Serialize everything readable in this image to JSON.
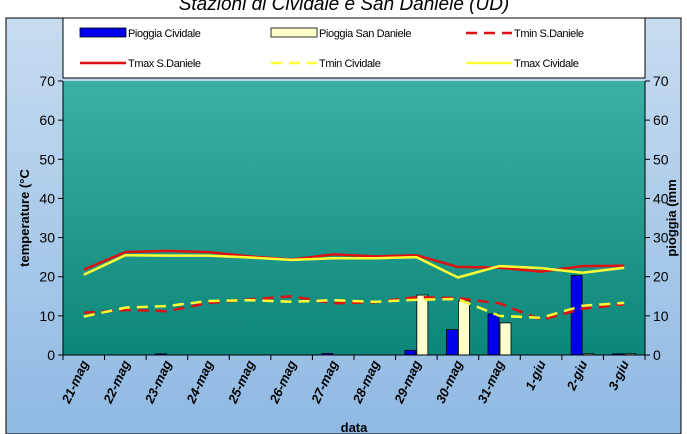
{
  "chart_data": {
    "type": "bar",
    "title": "Stazioni di Cividale e San Daniele (UD)",
    "xlabel": "data",
    "ylabel_left": "temperature (°C",
    "ylabel_right": "pioggia (mm",
    "categories": [
      "21-mag",
      "22-mag",
      "23-mag",
      "24-mag",
      "25-mag",
      "26-mag",
      "27-mag",
      "28-mag",
      "29-mag",
      "30-mag",
      "31-mag",
      "1-giu",
      "2-giu",
      "3-giu"
    ],
    "ylim_left": [
      0,
      70
    ],
    "ylim_right": [
      0,
      70
    ],
    "yticks": [
      0,
      10,
      20,
      30,
      40,
      50,
      60,
      70
    ],
    "grid": false,
    "legend_position": "top",
    "bar_series": [
      {
        "name": "Pioggia Cividale",
        "color": "#0000ee",
        "axis": "right",
        "values": [
          0,
          0,
          0.3,
          0,
          0,
          0,
          0.4,
          0,
          1.2,
          6.5,
          10.5,
          0,
          20.3,
          0.3
        ]
      },
      {
        "name": "Pioggia San Daniele",
        "color": "#ffffcc",
        "axis": "right",
        "values": [
          0,
          0,
          0,
          0,
          0,
          0,
          0,
          0,
          15.3,
          13.8,
          8.2,
          0,
          0.3,
          0.3
        ]
      }
    ],
    "line_series": [
      {
        "name": "Tmin S.Daniele",
        "color": "#dd1111",
        "style": "dashed",
        "axis": "left",
        "values": [
          10.8,
          11.5,
          11.2,
          13.3,
          14.2,
          15.0,
          13.2,
          13.5,
          14.8,
          14.5,
          13.2,
          9.0,
          11.8,
          13.0
        ]
      },
      {
        "name": "Tmax S.Daniele",
        "color": "#dd1111",
        "style": "solid",
        "axis": "left",
        "values": [
          21.8,
          26.3,
          26.6,
          26.3,
          25.2,
          24.4,
          25.7,
          25.2,
          25.5,
          22.5,
          22.3,
          21.3,
          22.7,
          22.8
        ]
      },
      {
        "name": "Tmin Cividale",
        "color": "#ffff33",
        "style": "dashed",
        "axis": "left",
        "values": [
          9.8,
          12.1,
          12.5,
          13.8,
          14.0,
          13.6,
          14.0,
          13.6,
          14.1,
          14.3,
          10.0,
          9.5,
          12.6,
          13.3
        ]
      },
      {
        "name": "Tmax Cividale",
        "color": "#ffff33",
        "style": "solid",
        "axis": "left",
        "values": [
          20.5,
          25.5,
          25.4,
          25.4,
          24.9,
          24.3,
          24.7,
          24.7,
          25.0,
          19.8,
          22.7,
          22.2,
          21.0,
          22.3
        ]
      }
    ]
  }
}
